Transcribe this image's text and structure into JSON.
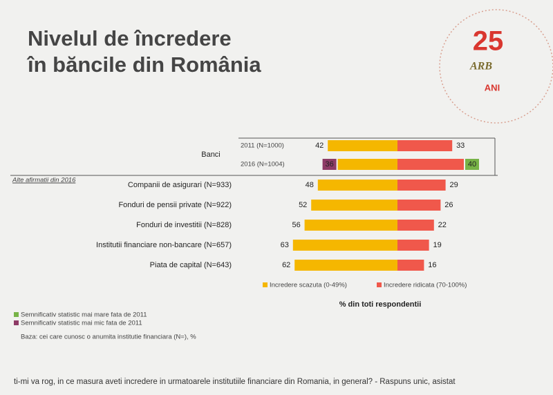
{
  "title_lines": [
    "Nivelul de încredere",
    "în băncile din România"
  ],
  "logo": {
    "number": "25",
    "initials": "ARB",
    "caption": "ANI"
  },
  "chart_data": {
    "type": "diverging_bar",
    "group_label": "Banci",
    "section_label": "Alte afirmatii din 2016",
    "categories": [
      "2011 (N=1000)",
      "2016 (N=1004)",
      "Companii de asigurari (N=933)",
      "Fonduri de pensii private (N=922)",
      "Fonduri de investitii (N=828)",
      "Institutii financiare non-bancare (N=657)",
      "Piata de capital (N=643)"
    ],
    "series": [
      {
        "name": "Incredere scazuta (0-49%)",
        "color": "#f5b700",
        "values": [
          42,
          36,
          48,
          52,
          56,
          63,
          62
        ],
        "highlight": [
          null,
          1,
          null,
          null,
          null,
          null,
          null
        ]
      },
      {
        "name": "Incredere ridicata (70-100%)",
        "color": "#f0584b",
        "values": [
          33,
          40,
          29,
          26,
          22,
          19,
          16
        ],
        "highlight": [
          null,
          0,
          null,
          null,
          null,
          null,
          null
        ]
      }
    ],
    "axis_label": "% din toti respondentii",
    "significance": [
      {
        "label": "Semnificativ statistic mai mare fata de 2011",
        "color": "#77b347"
      },
      {
        "label": "Semnificativ statistic mai mic fata de 2011",
        "color": "#8e3b66"
      }
    ],
    "base_note": "Baza: cei care cunosc o anumita institutie financiara (N=), %"
  },
  "question": "ti-mi va rog, in ce masura aveti incredere in urmatoarele institutiile financiare din Romania, in general? - Raspuns unic, asistat"
}
